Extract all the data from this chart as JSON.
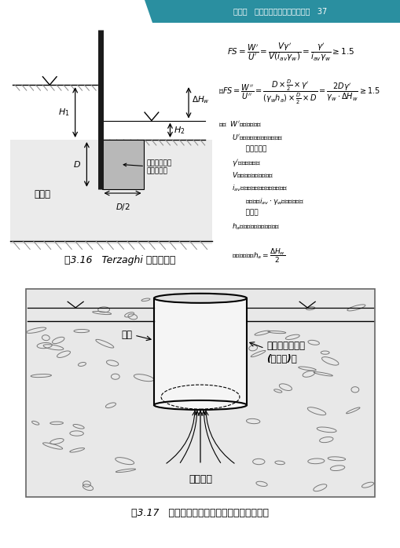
{
  "page_bg": "#ffffff",
  "header_bg": "#2a8fa0",
  "header_text": "第三章   基础施工災害之類型及機制   37",
  "header_text_color": "#ffffff",
  "fig116_caption": "圖3.16   Terzaghi 砂湧之檢核",
  "fig117_caption": "圖3.17   基樁工程中因流砂因流砂而產生之砂湧",
  "sand_layer_label": "透水層",
  "piping_zone_label": "最常發生砂湧\n的浮動範圖",
  "casing_label": "套管",
  "gravel_label1": "砂土夾卵礫石層",
  "gravel_label2": "(透水層)－",
  "boil_label": "湧水湧砂"
}
